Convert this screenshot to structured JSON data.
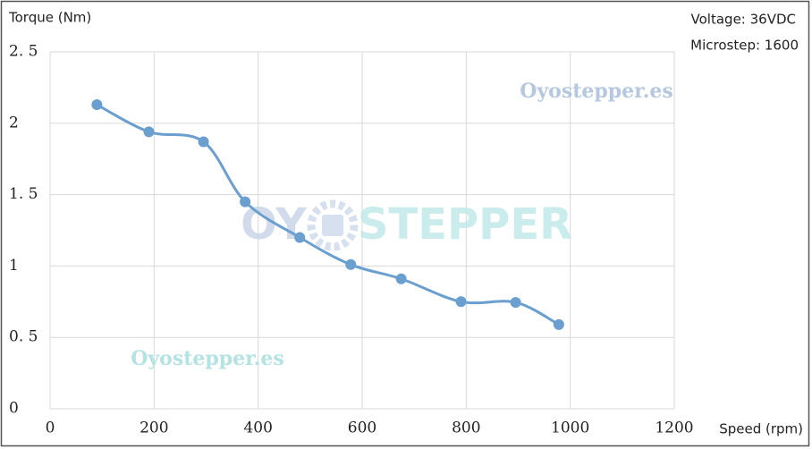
{
  "chart_data": {
    "type": "line",
    "y_axis_label": "Torque (Nm)",
    "x_axis_label": "Speed (rpm)",
    "annotations": [
      "Voltage: 36VDC",
      "Microstep: 1600"
    ],
    "watermarks": [
      "Oyostepper.es",
      "Oyostepper.es",
      "OY",
      "STEPPER"
    ],
    "x": [
      90,
      190,
      295,
      375,
      480,
      578,
      675,
      790,
      895,
      978
    ],
    "series": [
      {
        "color": "#6a9fd0",
        "values": [
          2.13,
          1.94,
          1.87,
          1.45,
          1.2,
          1.01,
          0.91,
          0.75,
          0.745,
          0.59
        ]
      }
    ],
    "xlim": [
      0,
      1200
    ],
    "xticks": [
      0,
      200,
      400,
      600,
      800,
      1000,
      1200
    ],
    "ylim": [
      0,
      2.5
    ],
    "yticks": [
      0,
      {
        "value": 0.5,
        "label": "0. 5"
      },
      1,
      {
        "value": 1.5,
        "label": "1. 5"
      },
      2,
      {
        "value": 2.5,
        "label": "2. 5"
      }
    ],
    "grid": true
  }
}
